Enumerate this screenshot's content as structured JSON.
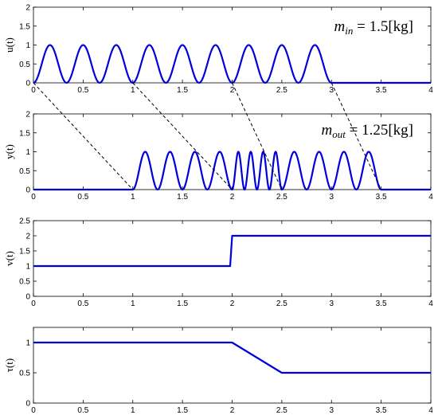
{
  "chart_data": [
    {
      "type": "line",
      "ylabel": "u(t)",
      "xlim": [
        0,
        4
      ],
      "ylim": [
        0,
        2
      ],
      "xticks": [
        "0",
        "0.5",
        "1",
        "1.5",
        "2",
        "2.5",
        "3",
        "3.5",
        "4"
      ],
      "yticks": [
        "0",
        "0.5",
        "1",
        "1.5",
        "2"
      ],
      "annotation": {
        "base": "m",
        "sub": "in",
        "tail": " = 1.5[kg]"
      },
      "series": [
        {
          "kind": "pulse_train",
          "t_start": 0,
          "t_end": 3,
          "pulses": 9,
          "amplitude": 1,
          "baseline": 0,
          "color": "#0000dd"
        }
      ],
      "grid": false
    },
    {
      "type": "line",
      "ylabel": "y(t)",
      "xlim": [
        0,
        4
      ],
      "ylim": [
        0,
        2
      ],
      "xticks": [
        "0",
        "0.5",
        "1",
        "1.5",
        "2",
        "2.5",
        "3",
        "3.5",
        "4"
      ],
      "yticks": [
        "0",
        "0.5",
        "1",
        "1.5",
        "2"
      ],
      "annotation": {
        "base": "m",
        "sub": "out",
        "tail": " = 1.25[kg]"
      },
      "series": [
        {
          "kind": "pulse_segments",
          "segments": [
            {
              "t_start": 1.0,
              "t_end": 2.0,
              "pulses": 4
            },
            {
              "t_start": 2.0,
              "t_end": 2.5,
              "pulses": 4
            },
            {
              "t_start": 2.5,
              "t_end": 3.5,
              "pulses": 4
            }
          ],
          "amplitude": 1,
          "baseline": 0,
          "color": "#0000dd"
        }
      ],
      "grid": false
    },
    {
      "type": "line",
      "ylabel": "v(t)",
      "xlim": [
        0,
        4
      ],
      "ylim": [
        0,
        2.5
      ],
      "xticks": [
        "0",
        "0.5",
        "1",
        "1.5",
        "2",
        "2.5",
        "3",
        "3.5",
        "4"
      ],
      "yticks": [
        "0",
        "0.5",
        "1",
        "1.5",
        "2",
        "2.5"
      ],
      "series": [
        {
          "kind": "polyline",
          "x": [
            0,
            1.98,
            2.0,
            4.0
          ],
          "y": [
            1,
            1,
            2,
            2
          ],
          "color": "#0000dd"
        }
      ],
      "grid": false
    },
    {
      "type": "line",
      "ylabel": "τ(t)",
      "xlim": [
        0,
        4
      ],
      "ylim": [
        0,
        1.25
      ],
      "xticks": [
        "0",
        "0.5",
        "1",
        "1.5",
        "2",
        "2.5",
        "3",
        "3.5",
        "4"
      ],
      "yticks": [
        "0",
        "0.5",
        "1"
      ],
      "series": [
        {
          "kind": "polyline",
          "x": [
            0,
            2.0,
            2.5,
            4.0
          ],
          "y": [
            1,
            1,
            0.5,
            0.5
          ],
          "color": "#0000dd"
        }
      ],
      "grid": false
    }
  ],
  "connectors": [
    {
      "from_t": 0,
      "to_t": 1.0
    },
    {
      "from_t": 1.0,
      "to_t": 2.0
    },
    {
      "from_t": 2.0,
      "to_t": 2.5
    },
    {
      "from_t": 3.0,
      "to_t": 3.5
    }
  ]
}
